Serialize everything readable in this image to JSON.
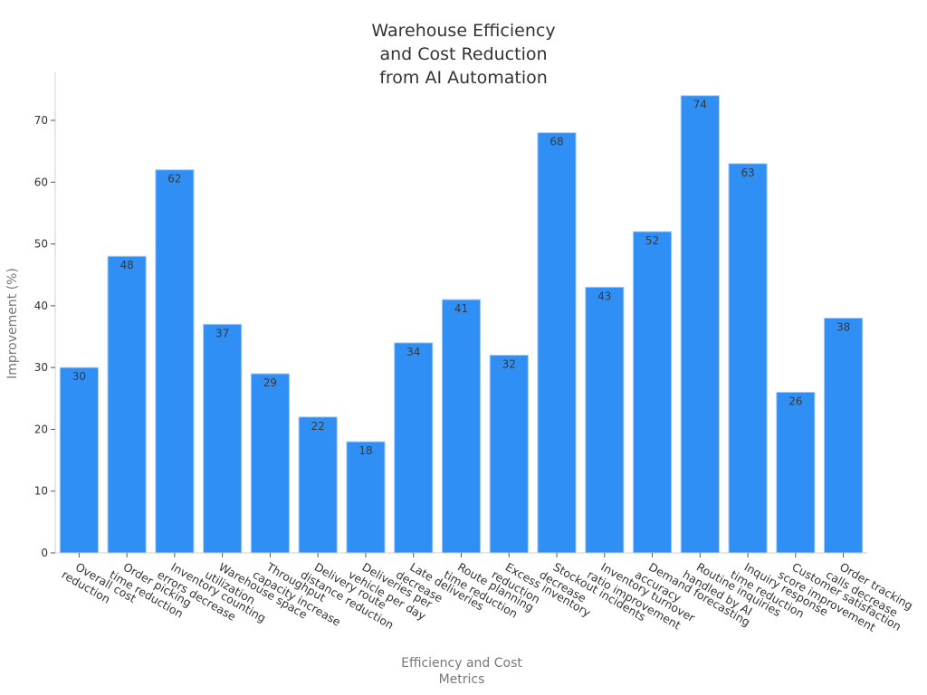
{
  "chart_data": {
    "type": "bar",
    "title": "Warehouse Efficiency\nand Cost Reduction\nfrom AI Automation",
    "xlabel": "Efficiency and Cost\nMetrics",
    "ylabel": "Improvement (%)",
    "ylim": [
      0,
      77
    ],
    "yticks": [
      0,
      10,
      20,
      30,
      40,
      50,
      60,
      70
    ],
    "grid": false,
    "legend": null,
    "bar_color": "#2f8ff5",
    "categories": [
      "Overall cost\nreduction",
      "Order picking\ntime reduction",
      "Inventory counting\nerrors decrease",
      "Warehouse space\nutilization",
      "Throughput\ncapacity increase",
      "Delivery route\ndistance reduction",
      "Deliveries per\nvehicle per day",
      "Late deliveries\ndecrease",
      "Route planning\ntime reduction",
      "Excess inventory\nreduction",
      "Stockout incidents\ndecrease",
      "Inventory turnover\nratio improvement",
      "Demand forecasting\naccuracy",
      "Routine inquiries\nhandled by AI",
      "Inquiry response\ntime reduction",
      "Customer satisfaction\nscore improvement",
      "Order tracking\ncalls decrease"
    ],
    "values": [
      30,
      48,
      62,
      37,
      29,
      22,
      18,
      34,
      41,
      32,
      68,
      43,
      52,
      74,
      63,
      26,
      38
    ]
  }
}
